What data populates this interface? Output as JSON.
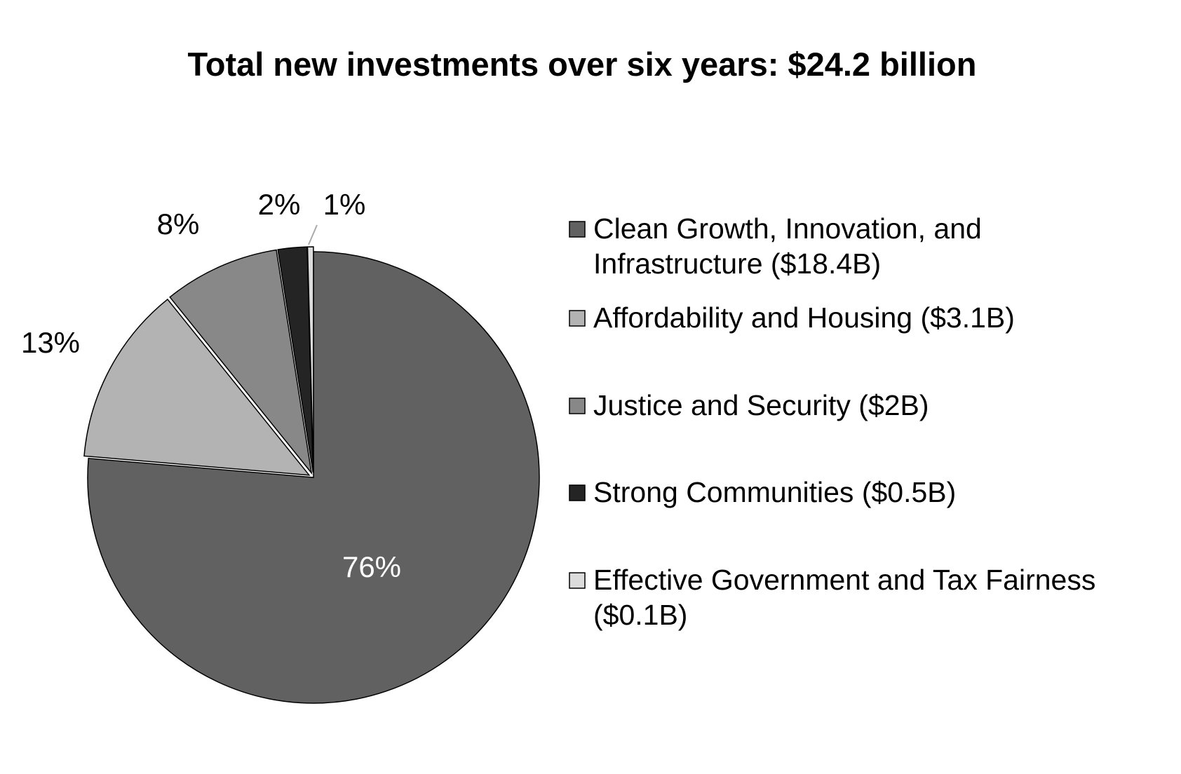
{
  "chart_data": {
    "type": "pie",
    "title": "Total new investments over six years: $24.2 billion",
    "start_angle_deg": 0,
    "direction": "clockwise",
    "colors": {
      "background": "#ffffff",
      "stroke": "#000000",
      "leader_line": "#aaaaaa"
    },
    "slices": [
      {
        "name": "Clean Growth, Innovation, and Infrastructure ($18.4B)",
        "legend_lines": [
          "Clean Growth, Innovation, and",
          "Infrastructure ($18.4B)"
        ],
        "value": 18.4,
        "percent_label": "76%",
        "color": "#616161",
        "label_color": "#ffffff",
        "exploded": false
      },
      {
        "name": "Affordability and Housing ($3.1B)",
        "legend_lines": [
          "Affordability and Housing ($3.1B)"
        ],
        "value": 3.1,
        "percent_label": "13%",
        "color": "#b3b3b3",
        "label_color": "#000000",
        "exploded": true
      },
      {
        "name": "Justice and Security ($2B)",
        "legend_lines": [
          "Justice and Security ($2B)"
        ],
        "value": 2,
        "percent_label": "8%",
        "color": "#888888",
        "label_color": "#000000",
        "exploded": true
      },
      {
        "name": "Strong Communities ($0.5B)",
        "legend_lines": [
          "Strong Communities ($0.5B)"
        ],
        "value": 0.5,
        "percent_label": "2%",
        "color": "#242424",
        "label_color": "#000000",
        "exploded": true
      },
      {
        "name": "Effective Government and Tax Fairness ($0.1B)",
        "legend_lines": [
          "Effective Government and Tax Fairness",
          "($0.1B)"
        ],
        "value": 0.1,
        "percent_label": "1%",
        "color": "#dcdcdc",
        "label_color": "#000000",
        "exploded": true
      }
    ]
  }
}
